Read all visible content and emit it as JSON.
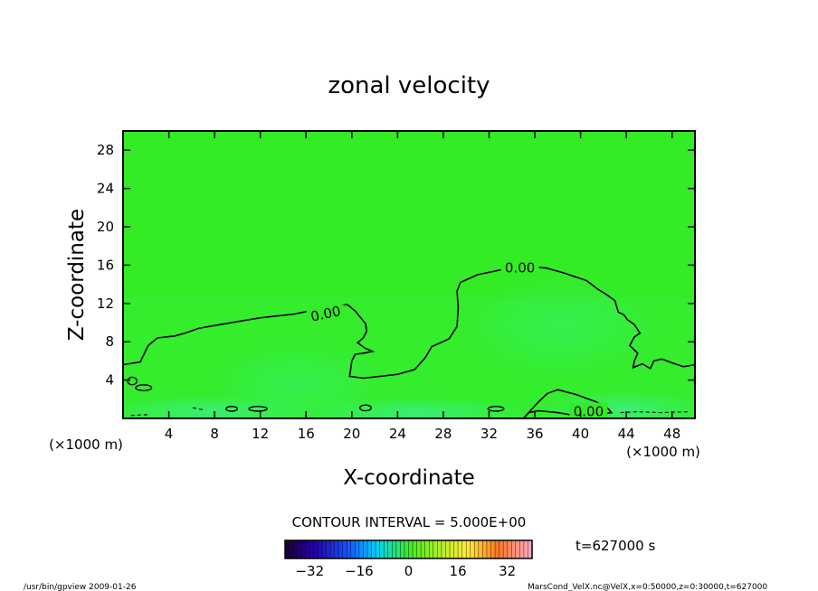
{
  "chart_data": {
    "type": "contour",
    "title": "zonal velocity",
    "xlabel": "X-coordinate",
    "ylabel": "Z-coordinate",
    "x_unit": "(×1000 m)",
    "y_unit": "(×1000 m)",
    "xlim": [
      0,
      50
    ],
    "ylim": [
      0,
      30
    ],
    "xticks": [
      4,
      8,
      12,
      16,
      20,
      24,
      28,
      32,
      36,
      40,
      44,
      48
    ],
    "yticks": [
      4,
      8,
      12,
      16,
      20,
      24,
      28
    ],
    "contour_interval": "CONTOUR INTERVAL = 5.000E+00",
    "time_label": "t=627000 s",
    "colorbar": {
      "min": -40,
      "max": 40,
      "ticks": [
        -32,
        -16,
        0,
        16,
        32
      ]
    },
    "zero_contour": {
      "level_label": "0.00",
      "main": [
        [
          0,
          5.6
        ],
        [
          1.5,
          5.9
        ],
        [
          2.2,
          7.6
        ],
        [
          3,
          8.4
        ],
        [
          4.5,
          8.6
        ],
        [
          5.4,
          8.9
        ],
        [
          6.6,
          9.4
        ],
        [
          8,
          9.7
        ],
        [
          10,
          10.1
        ],
        [
          12,
          10.5
        ],
        [
          13.5,
          10.7
        ],
        [
          15,
          10.9
        ],
        [
          17,
          11.4
        ],
        [
          18.7,
          11.7
        ],
        [
          19.6,
          11.9
        ],
        [
          20.3,
          11.2
        ],
        [
          21.2,
          9.9
        ],
        [
          21.3,
          9.1
        ],
        [
          21,
          8.4
        ],
        [
          20.5,
          7.9
        ],
        [
          21.2,
          7.3
        ],
        [
          21.8,
          7
        ],
        [
          21,
          6.8
        ],
        [
          20.3,
          6.7
        ],
        [
          20,
          6
        ],
        [
          19.9,
          5.1
        ],
        [
          19.8,
          4.4
        ],
        [
          21,
          4.2
        ],
        [
          22.5,
          4.4
        ],
        [
          24,
          4.6
        ],
        [
          25.5,
          5.1
        ],
        [
          26.4,
          6.3
        ],
        [
          27,
          7.5
        ],
        [
          28.5,
          8.3
        ],
        [
          29.2,
          9.6
        ],
        [
          29.3,
          11.6
        ],
        [
          29.2,
          13.3
        ],
        [
          29.5,
          14.2
        ],
        [
          31,
          15
        ],
        [
          33,
          15.5
        ],
        [
          35,
          15.9
        ],
        [
          37,
          15.7
        ],
        [
          38.5,
          15.2
        ],
        [
          40.5,
          14.4
        ],
        [
          41.5,
          13.5
        ],
        [
          42.3,
          12.9
        ],
        [
          43,
          12.3
        ],
        [
          43.3,
          11.1
        ],
        [
          43.8,
          10.8
        ],
        [
          44.1,
          10.3
        ],
        [
          44.7,
          9.8
        ],
        [
          45.2,
          8.9
        ],
        [
          44.7,
          8.5
        ],
        [
          44.3,
          7.6
        ],
        [
          45,
          6.8
        ],
        [
          44.7,
          6
        ],
        [
          44.6,
          5.3
        ],
        [
          45.4,
          5.7
        ],
        [
          46.1,
          5.2
        ],
        [
          46.4,
          6
        ],
        [
          47.1,
          6.2
        ],
        [
          48,
          5.8
        ],
        [
          49,
          5.4
        ],
        [
          50,
          5.6
        ]
      ],
      "bottom": [
        [
          35,
          0
        ],
        [
          36.3,
          1.7
        ],
        [
          37.1,
          2.6
        ],
        [
          38,
          3
        ],
        [
          39.6,
          2.5
        ],
        [
          40.5,
          2.1
        ],
        [
          41.2,
          1.8
        ],
        [
          42.2,
          1.3
        ],
        [
          42.7,
          0.6
        ],
        [
          40,
          0.2
        ],
        [
          38,
          0.6
        ],
        [
          36.3,
          0.8
        ],
        [
          35.5,
          0.6
        ],
        [
          35,
          0
        ]
      ]
    },
    "zero_labels": [
      {
        "x": 17.7,
        "y": 11.0,
        "text": "0.00",
        "angle": -12
      },
      {
        "x": 34.7,
        "y": 15.8,
        "text": "0.00",
        "angle": 0
      },
      {
        "x": 40.7,
        "y": 0.8,
        "text": "0.00",
        "angle": 0
      }
    ]
  },
  "footer": {
    "left": "/usr/bin/gpview   2009-01-26",
    "right": "MarsCond_VelX.nc@VelX,x=0:50000,z=0:30000,t=627000"
  },
  "colors": {
    "field": "#33ec25",
    "contour": "#000000"
  }
}
